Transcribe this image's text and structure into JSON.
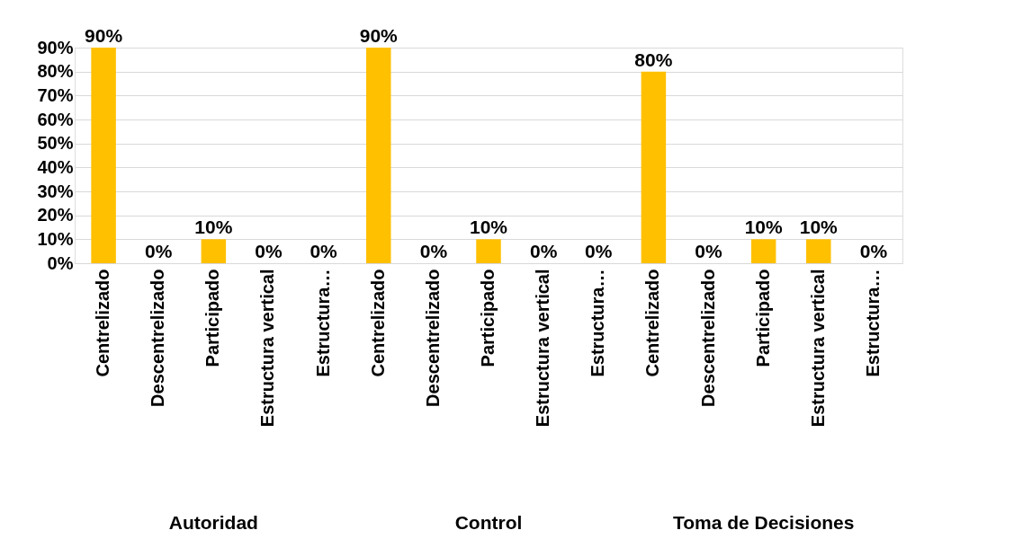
{
  "chart_data": {
    "type": "bar",
    "categories": [
      "Centrelizado",
      "Descentrelizado",
      "Participado",
      "Estructura vertical",
      "Estructura…",
      "Centrelizado",
      "Descentrelizado",
      "Participado",
      "Estructura vertical",
      "Estructura…",
      "Centrelizado",
      "Descentrelizado",
      "Participado",
      "Estructura vertical",
      "Estructura…"
    ],
    "values": [
      90,
      0,
      10,
      0,
      0,
      90,
      0,
      10,
      0,
      0,
      80,
      0,
      10,
      10,
      0
    ],
    "value_labels": [
      "90%",
      "0%",
      "10%",
      "0%",
      "0%",
      "90%",
      "0%",
      "10%",
      "0%",
      "0%",
      "80%",
      "0%",
      "10%",
      "10%",
      "0%"
    ],
    "color": "#ffc000",
    "ylim": [
      0,
      90
    ],
    "yticks": [
      {
        "value": 0,
        "label": "0%"
      },
      {
        "value": 10,
        "label": "10%"
      },
      {
        "value": 20,
        "label": "20%"
      },
      {
        "value": 30,
        "label": "30%"
      },
      {
        "value": 40,
        "label": "40%"
      },
      {
        "value": 50,
        "label": "50%"
      },
      {
        "value": 60,
        "label": "60%"
      },
      {
        "value": 70,
        "label": "70%"
      },
      {
        "value": 80,
        "label": "80%"
      },
      {
        "value": 90,
        "label": "90%"
      }
    ],
    "grid": "y",
    "annotations": [
      "Autoridad",
      "Control",
      "Toma de Decisiones"
    ]
  }
}
